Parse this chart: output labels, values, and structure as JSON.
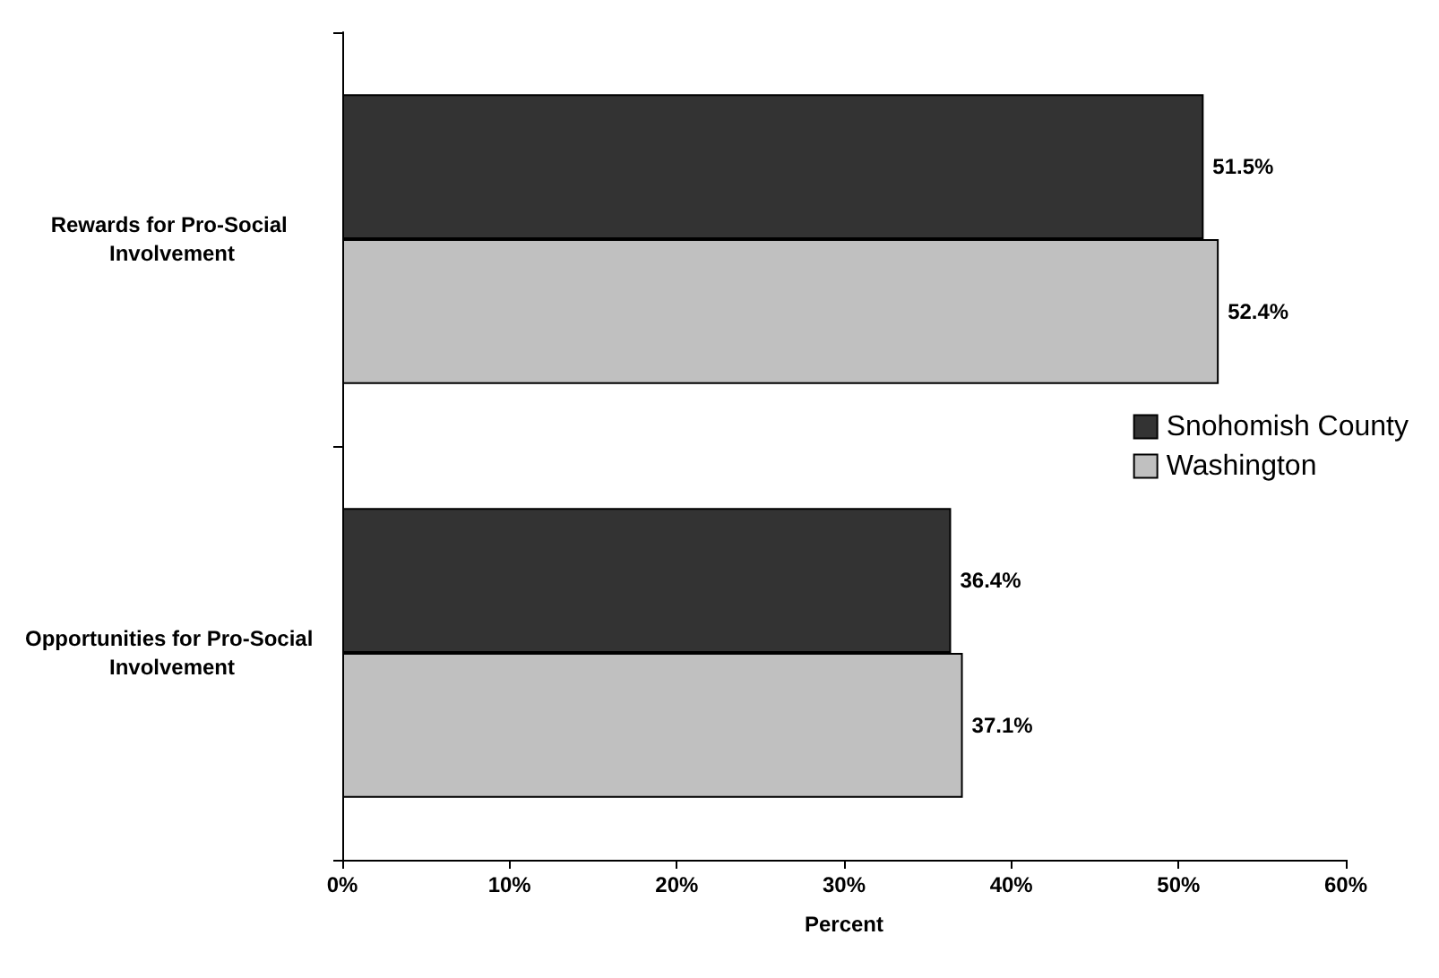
{
  "chart_data": {
    "type": "bar",
    "orientation": "horizontal",
    "xlabel": "Percent",
    "categories": [
      "Rewards for Pro-Social Involvement",
      "Opportunities for Pro-Social Involvement"
    ],
    "series": [
      {
        "name": "Snohomish County",
        "color": "#333333",
        "values": [
          51.5,
          36.4
        ],
        "value_labels": [
          "51.5%",
          "36.4%"
        ]
      },
      {
        "name": "Washington",
        "color": "#c0c0c0",
        "values": [
          52.4,
          37.1
        ],
        "value_labels": [
          "52.4%",
          "37.1%"
        ]
      }
    ],
    "xlim": [
      0,
      60
    ],
    "xticks": [
      {
        "value": 0,
        "label": "0%"
      },
      {
        "value": 10,
        "label": "10%"
      },
      {
        "value": 20,
        "label": "20%"
      },
      {
        "value": 30,
        "label": "30%"
      },
      {
        "value": 40,
        "label": "40%"
      },
      {
        "value": 50,
        "label": "50%"
      },
      {
        "value": 60,
        "label": "60%"
      }
    ],
    "grid": false,
    "legend": "right"
  }
}
